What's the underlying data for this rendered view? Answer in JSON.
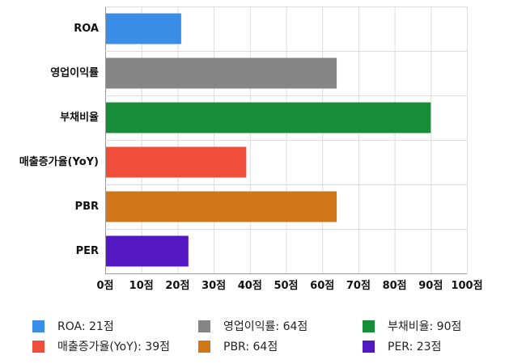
{
  "chart_data": {
    "type": "bar",
    "orientation": "horizontal",
    "categories": [
      "ROA",
      "영업이익률",
      "부채비율",
      "매출증가율(YoY)",
      "PBR",
      "PER"
    ],
    "values": [
      21,
      64,
      90,
      39,
      64,
      23
    ],
    "colors": [
      "#3b8ee8",
      "#858585",
      "#178d37",
      "#ee4e3a",
      "#d1771a",
      "#5318c1"
    ],
    "xlim": [
      0,
      100
    ],
    "xticks": [
      0,
      10,
      20,
      30,
      40,
      50,
      60,
      70,
      80,
      90,
      100
    ],
    "xtick_labels": [
      "0점",
      "10점",
      "20점",
      "30점",
      "40점",
      "50점",
      "60점",
      "70점",
      "80점",
      "90점",
      "100점"
    ],
    "grid": true,
    "legend_position": "bottom",
    "legend_entries": [
      "ROA: 21점",
      "영업이익률: 64점",
      "부채비율: 90점",
      "매출증가율(YoY): 39점",
      "PBR: 64점",
      "PER: 23점"
    ]
  }
}
